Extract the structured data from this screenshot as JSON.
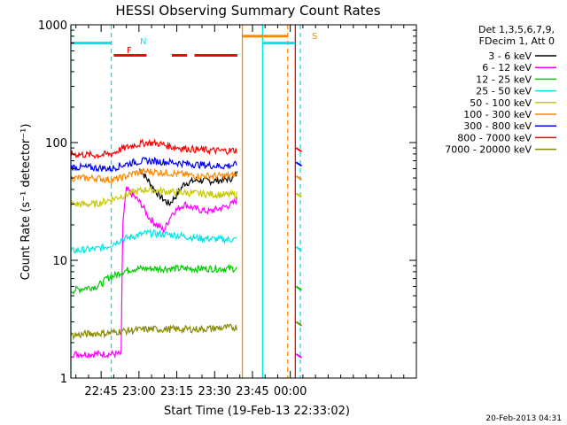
{
  "chart_data": {
    "type": "line",
    "title": "HESSI Observing Summary Count Rates",
    "xlabel": "Start Time (19-Feb-13 22:33:02)",
    "ylabel": "Count Rate (s⁻¹ detector⁻¹)",
    "y_scale": "log",
    "ylim": [
      1,
      1000
    ],
    "y_ticks": [
      "1",
      "10",
      "100",
      "1000"
    ],
    "x_range_minutes": [
      0,
      137
    ],
    "x_ticks": [
      {
        "label": "22:45",
        "value": 12
      },
      {
        "label": "23:00",
        "value": 27
      },
      {
        "label": "23:15",
        "value": 42
      },
      {
        "label": "23:30",
        "value": 57
      },
      {
        "label": "23:45",
        "value": 72
      },
      {
        "label": "00:00",
        "value": 87
      }
    ],
    "legend_header": [
      "Det 1,3,5,6,7,9,",
      "FDecim 1, Att 0"
    ],
    "series": [
      {
        "name": "3 - 6 keV",
        "color": "#000000",
        "points": [
          [
            27,
            60
          ],
          [
            30,
            50
          ],
          [
            33,
            40
          ],
          [
            36,
            34
          ],
          [
            39,
            30
          ],
          [
            42,
            36
          ],
          [
            45,
            45
          ],
          [
            50,
            48
          ],
          [
            55,
            47
          ],
          [
            60,
            48
          ],
          [
            64,
            50
          ],
          [
            66,
            55
          ]
        ]
      },
      {
        "name": "6 - 12 keV",
        "color": "#ff00ff",
        "points": [
          [
            0,
            1.6
          ],
          [
            20,
            1.6
          ],
          [
            20.5,
            20
          ],
          [
            22,
            40
          ],
          [
            25,
            35
          ],
          [
            28,
            30
          ],
          [
            31,
            23
          ],
          [
            34,
            20
          ],
          [
            37,
            18
          ],
          [
            40,
            25
          ],
          [
            45,
            30
          ],
          [
            50,
            27
          ],
          [
            55,
            26
          ],
          [
            60,
            28
          ],
          [
            64,
            30
          ],
          [
            66,
            33
          ]
        ]
      },
      {
        "name": "12 - 25 keV",
        "color": "#00cc00",
        "points": [
          [
            0,
            5.5
          ],
          [
            5,
            5.8
          ],
          [
            10,
            6
          ],
          [
            13,
            6.5
          ],
          [
            14,
            7
          ],
          [
            18,
            7.5
          ],
          [
            20,
            8
          ],
          [
            25,
            8.5
          ],
          [
            35,
            8.5
          ],
          [
            50,
            8.5
          ],
          [
            66,
            8.5
          ]
        ]
      },
      {
        "name": "25 - 50 keV",
        "color": "#00e5e5",
        "points": [
          [
            0,
            12
          ],
          [
            10,
            12.5
          ],
          [
            14,
            13
          ],
          [
            20,
            15
          ],
          [
            25,
            16
          ],
          [
            30,
            17
          ],
          [
            40,
            16.5
          ],
          [
            50,
            15.5
          ],
          [
            60,
            15
          ],
          [
            66,
            15
          ]
        ]
      },
      {
        "name": "50 - 100 keV",
        "color": "#c8c800",
        "points": [
          [
            0,
            30
          ],
          [
            10,
            30
          ],
          [
            14,
            32
          ],
          [
            20,
            35
          ],
          [
            25,
            38
          ],
          [
            30,
            40
          ],
          [
            40,
            38
          ],
          [
            50,
            37
          ],
          [
            60,
            36
          ],
          [
            66,
            36
          ]
        ]
      },
      {
        "name": "100 - 300 keV",
        "color": "#ff8800",
        "points": [
          [
            0,
            50
          ],
          [
            10,
            50
          ],
          [
            16,
            48
          ],
          [
            20,
            50
          ],
          [
            25,
            55
          ],
          [
            30,
            57
          ],
          [
            40,
            55
          ],
          [
            50,
            52
          ],
          [
            60,
            52
          ],
          [
            66,
            53
          ]
        ]
      },
      {
        "name": "300 - 800 keV",
        "color": "#0000ff",
        "points": [
          [
            0,
            62
          ],
          [
            10,
            61
          ],
          [
            16,
            60
          ],
          [
            20,
            64
          ],
          [
            25,
            68
          ],
          [
            30,
            70
          ],
          [
            40,
            68
          ],
          [
            50,
            65
          ],
          [
            60,
            63
          ],
          [
            66,
            65
          ]
        ]
      },
      {
        "name": "800 - 7000 keV",
        "color": "#ff0000",
        "points": [
          [
            0,
            80
          ],
          [
            10,
            78
          ],
          [
            16,
            80
          ],
          [
            20,
            88
          ],
          [
            25,
            95
          ],
          [
            30,
            100
          ],
          [
            35,
            98
          ],
          [
            40,
            92
          ],
          [
            50,
            87
          ],
          [
            60,
            85
          ],
          [
            66,
            86
          ]
        ]
      },
      {
        "name": "7000 - 20000 keV",
        "color": "#888800",
        "points": [
          [
            0,
            2.3
          ],
          [
            10,
            2.4
          ],
          [
            14,
            2.4
          ],
          [
            20,
            2.5
          ],
          [
            30,
            2.6
          ],
          [
            40,
            2.6
          ],
          [
            50,
            2.6
          ],
          [
            66,
            2.7
          ]
        ]
      }
    ],
    "annotations": [
      {
        "label": "N",
        "color": "#00e5e5"
      },
      {
        "label": "F",
        "color": "#ff0000"
      },
      {
        "label": "S",
        "color": "#ff8800"
      }
    ],
    "flag_bars": [
      {
        "color": "#00e5e5",
        "y": 700,
        "segments": [
          [
            0,
            16
          ],
          [
            76,
            89
          ]
        ]
      },
      {
        "color": "#ff0000",
        "y": 550,
        "segments": [
          [
            17,
            30
          ],
          [
            40,
            46
          ],
          [
            49,
            66
          ]
        ]
      },
      {
        "color": "#ff8800",
        "y": 800,
        "segments": [
          [
            68,
            86
          ]
        ]
      }
    ],
    "vertical_lines": [
      {
        "color": "#00e5e5",
        "x": 0,
        "dashed": false
      },
      {
        "color": "#00e5e5",
        "x": 16,
        "dashed": true
      },
      {
        "color": "#ff8800",
        "x": 68,
        "dashed": false
      },
      {
        "color": "#00e5e5",
        "x": 76,
        "dashed": false
      },
      {
        "color": "#ff8800",
        "x": 86,
        "dashed": true
      },
      {
        "color": "#ff0000",
        "x": 89,
        "dashed": false
      },
      {
        "color": "#00e5e5",
        "x": 91,
        "dashed": true
      }
    ],
    "tail_values": [
      {
        "color": "#ff0000",
        "y": 90
      },
      {
        "color": "#0000ff",
        "y": 68
      },
      {
        "color": "#ff8800",
        "y": 52
      },
      {
        "color": "#c8c800",
        "y": 37
      },
      {
        "color": "#00e5e5",
        "y": 13
      },
      {
        "color": "#00cc00",
        "y": 6
      },
      {
        "color": "#888800",
        "y": 3
      },
      {
        "color": "#ff00ff",
        "y": 1.6
      }
    ],
    "footer_date": "20-Feb-2013 04:31"
  }
}
